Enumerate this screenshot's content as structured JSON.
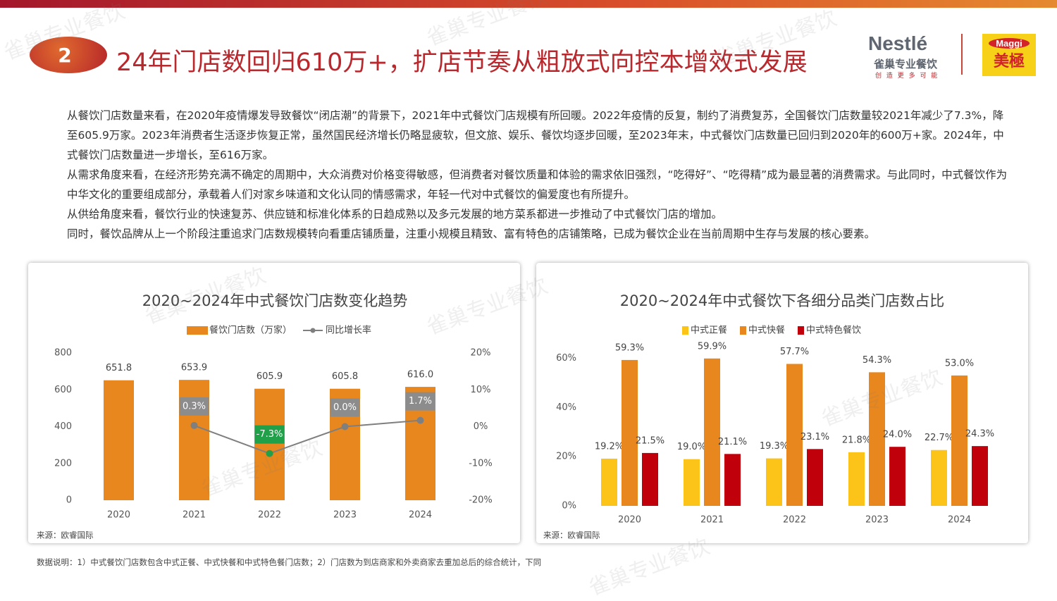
{
  "header": {
    "number": "2",
    "title": "24年门店数回归610万+，扩店节奏从粗放式向控本增效式发展",
    "brand": "Nestlé",
    "brand_cn": "雀巢专业餐饮",
    "slogan": "创 造 更 多 可 能",
    "brand2": "Maggi",
    "brand2_cn": "美極"
  },
  "body": [
    "从餐饮门店数量来看，在2020年疫情爆发导致餐饮“闭店潮”的背景下，2021年中式餐饮门店规模有所回暖。2022年疫情的反复，制约了消费复苏，全国餐饮门店数量较2021年减少了7.3%，降至605.9万家。2023年消费者生活逐步恢复正常，虽然国民经济增长仍略显疲软，但文旅、娱乐、餐饮均逐步回暖，至2023年末，中式餐饮门店数量已回归到2020年的600万+家。2024年，中式餐饮门店数量进一步增长，至616万家。",
    "从需求角度来看，在经济形势充满不确定的周期中，大众消费对价格变得敏感，但消费者对餐饮质量和体验的需求依旧强烈，“吃得好”、“吃得精”成为最显著的消费需求。与此同时，中式餐饮作为中华文化的重要组成部分，承载着人们对家乡味道和文化认同的情感需求，年轻一代对中式餐饮的偏爱度也有所提升。",
    "从供给角度来看，餐饮行业的快速复苏、供应链和标准化体系的日趋成熟以及多元发展的地方菜系都进一步推动了中式餐饮门店的增加。",
    "同时，餐饮品牌从上一个阶段注重追求门店数规模转向看重店铺质量，注重小规模且精致、富有特色的店铺策略，已成为餐饮企业在当前周期中生存与发展的核心要素。"
  ],
  "footnote": "数据说明：1）中式餐饮门店数包含中式正餐、中式快餐和中式特色餐门店数；2）门店数为到店商家和外卖商家去重加总后的综合统计，下同",
  "watermark": "雀巢专业餐饮",
  "chart_data": [
    {
      "type": "bar",
      "title": "2020~2024年中式餐饮门店数变化趋势",
      "source": "来源：欧睿国际",
      "categories": [
        "2020",
        "2021",
        "2022",
        "2023",
        "2024"
      ],
      "series": [
        {
          "name": "餐饮门店数（万家）",
          "type": "bar",
          "color": "#e8871e",
          "values": [
            651.8,
            653.9,
            605.9,
            605.8,
            616.0
          ],
          "value_labels": [
            "651.8",
            "653.9",
            "605.9",
            "605.8",
            "616.0"
          ]
        },
        {
          "name": "同比增长率",
          "type": "line",
          "axis": "y2",
          "color": "#7f7f7f",
          "values": [
            null,
            0.3,
            -7.3,
            0.0,
            1.7
          ],
          "value_labels": [
            null,
            "0.3%",
            "-7.3%",
            "0.0%",
            "1.7%"
          ]
        }
      ],
      "ylim": [
        0,
        800
      ],
      "yticks": [
        0,
        200,
        400,
        600,
        800
      ],
      "y2lim": [
        -20,
        20
      ],
      "y2ticks": [
        {
          "value": -20,
          "label": "-20%"
        },
        {
          "value": -10,
          "label": "-10%"
        },
        {
          "value": 0,
          "label": "0%"
        },
        {
          "value": 10,
          "label": "10%"
        },
        {
          "value": 20,
          "label": "20%"
        }
      ]
    },
    {
      "type": "bar",
      "title": "2020~2024年中式餐饮下各细分品类门店数占比",
      "source": "来源：欧睿国际",
      "categories": [
        "2020",
        "2021",
        "2022",
        "2023",
        "2024"
      ],
      "series": [
        {
          "name": "中式正餐",
          "color": "#fcc419",
          "values": [
            19.2,
            19.0,
            19.3,
            21.8,
            22.7
          ],
          "value_labels": [
            "19.2%",
            "19.0%",
            "19.3%",
            "21.8%",
            "22.7%"
          ]
        },
        {
          "name": "中式快餐",
          "color": "#e8871e",
          "values": [
            59.3,
            59.9,
            57.7,
            54.3,
            53.0
          ],
          "value_labels": [
            "59.3%",
            "59.9%",
            "57.7%",
            "54.3%",
            "53.0%"
          ]
        },
        {
          "name": "中式特色餐饮",
          "color": "#c0000b",
          "values": [
            21.5,
            21.1,
            23.1,
            24.0,
            24.3
          ],
          "value_labels": [
            "21.5%",
            "21.1%",
            "23.1%",
            "24.0%",
            "24.3%"
          ]
        }
      ],
      "ylim": [
        0,
        65
      ],
      "yticks": [
        {
          "value": 0,
          "label": "0%"
        },
        {
          "value": 20,
          "label": "20%"
        },
        {
          "value": 40,
          "label": "40%"
        },
        {
          "value": 60,
          "label": "60%"
        }
      ]
    }
  ]
}
